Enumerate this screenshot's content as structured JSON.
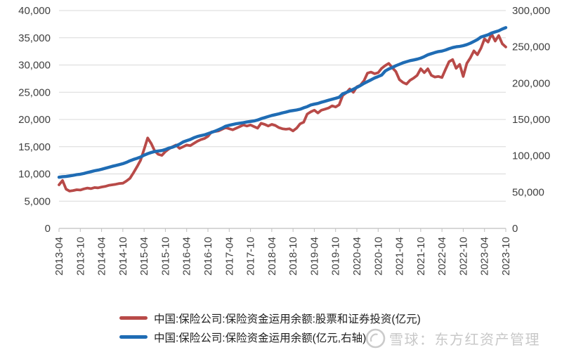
{
  "colors": {
    "red_series": "#B84A48",
    "blue_series": "#1F6CB4",
    "gridline": "#D9D9D9",
    "axis_line": "#BFBFBF",
    "tick_label": "#404040",
    "legend_text": "#1F1F1F",
    "watermark": "#C8C8C8",
    "background": "#FFFFFF"
  },
  "watermark": {
    "text": "雪球：东方红资产管理",
    "logo": "snowball-icon"
  },
  "chart_data": {
    "type": "line",
    "x_start": "2013-04",
    "x_freq": "monthly",
    "x_tick_labels": [
      "2013-04",
      "2013-10",
      "2014-04",
      "2014-10",
      "2015-04",
      "2015-10",
      "2016-04",
      "2016-10",
      "2017-04",
      "2017-10",
      "2018-04",
      "2018-10",
      "2019-04",
      "2019-10",
      "2020-04",
      "2020-10",
      "2021-04",
      "2021-10",
      "2022-04",
      "2022-10",
      "2023-04",
      "2023-10"
    ],
    "x_tick_every_n_points": 6,
    "left_axis": {
      "min": 0,
      "max": 40000,
      "step": 5000,
      "tick_labels_top_down": [
        "40,000",
        "35,000",
        "30,000",
        "25,000",
        "20,000",
        "15,000",
        "10,000",
        "5,000",
        "0"
      ]
    },
    "right_axis": {
      "min": 0,
      "max": 300000,
      "step": 50000,
      "tick_labels_top_down": [
        "300,000",
        "250,000",
        "200,000",
        "150,000",
        "100,000",
        "50,000",
        "0"
      ]
    },
    "grid": "horizontal",
    "legend_position": "bottom",
    "series": [
      {
        "name": "中国:保险公司:保险资金运用余额:股票和证券投资(亿元)",
        "axis": "left",
        "color_key": "red_series",
        "values": [
          8000,
          8800,
          7200,
          6850,
          6950,
          7100,
          7050,
          7250,
          7400,
          7300,
          7500,
          7450,
          7600,
          7700,
          7900,
          8000,
          8100,
          8250,
          8300,
          8700,
          9200,
          10200,
          11300,
          12500,
          14500,
          16600,
          15600,
          14200,
          13600,
          13400,
          14100,
          14600,
          15000,
          15300,
          14700,
          15000,
          15300,
          15200,
          15600,
          16000,
          16300,
          16500,
          16900,
          17700,
          17800,
          17900,
          18200,
          18500,
          18300,
          18100,
          18400,
          18700,
          19000,
          18800,
          19000,
          18700,
          18400,
          19300,
          19100,
          18800,
          19100,
          18900,
          18500,
          18300,
          18200,
          18300,
          17900,
          18400,
          19200,
          19500,
          21000,
          21400,
          21700,
          21200,
          21700,
          21900,
          22100,
          22500,
          22300,
          22700,
          24400,
          24900,
          25600,
          25000,
          26000,
          26300,
          27100,
          28500,
          28700,
          28400,
          28600,
          29400,
          29900,
          30300,
          29500,
          28800,
          27300,
          26800,
          26500,
          27200,
          27600,
          28100,
          29300,
          28600,
          29300,
          28100,
          27800,
          27900,
          27700,
          29200,
          30600,
          31000,
          29400,
          30100,
          27900,
          30300,
          31300,
          32600,
          31900,
          33100,
          34800,
          34200,
          35700,
          34400,
          35400,
          33900,
          33300
        ]
      },
      {
        "name": "中国:保险公司:保险资金运用余额(亿元,右轴)",
        "axis": "right",
        "color_key": "blue_series",
        "values": [
          70500,
          71200,
          71500,
          72300,
          73100,
          74000,
          74600,
          75600,
          76900,
          78100,
          79400,
          80200,
          81400,
          82700,
          84100,
          85500,
          86600,
          87900,
          89100,
          90900,
          93100,
          94900,
          96500,
          98300,
          100800,
          102900,
          104500,
          105900,
          106500,
          107200,
          108600,
          110600,
          111800,
          113700,
          116000,
          119000,
          120800,
          122400,
          124700,
          126500,
          127700,
          128800,
          130500,
          132200,
          133900,
          136000,
          138100,
          140700,
          142000,
          143100,
          144200,
          144900,
          145600,
          146500,
          147300,
          148000,
          149200,
          151100,
          152500,
          154100,
          155500,
          156600,
          157700,
          159100,
          160200,
          161500,
          162300,
          163100,
          164100,
          166100,
          167600,
          169900,
          171100,
          172100,
          173700,
          175100,
          176500,
          177900,
          179100,
          180600,
          185300,
          187200,
          189200,
          191700,
          194100,
          196600,
          199700,
          202200,
          204600,
          207200,
          209100,
          211200,
          216800,
          219500,
          221500,
          224000,
          226000,
          228000,
          229500,
          231000,
          232000,
          233000,
          234500,
          236500,
          239000,
          240600,
          242100,
          243500,
          244200,
          245600,
          247500,
          249000,
          250100,
          250600,
          251600,
          253100,
          255000,
          257500,
          260000,
          263500,
          265100,
          266600,
          269000,
          270600,
          272100,
          274500,
          276500
        ]
      }
    ]
  }
}
